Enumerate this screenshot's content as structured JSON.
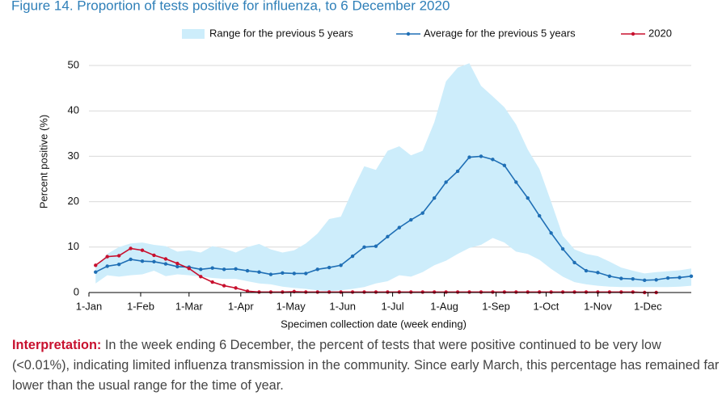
{
  "chart_data": {
    "type": "line",
    "title": "Figure 14. Proportion of tests positive for influenza, to 6 December 2020",
    "x_label": "Specimen collection date (week ending)",
    "y_label": "Percent positive (%)",
    "x": [
      "5-Jan",
      "12-Jan",
      "19-Jan",
      "26-Jan",
      "2-Feb",
      "9-Feb",
      "16-Feb",
      "23-Feb",
      "1-Mar",
      "8-Mar",
      "15-Mar",
      "22-Mar",
      "29-Mar",
      "5-Apr",
      "12-Apr",
      "19-Apr",
      "26-Apr",
      "3-May",
      "10-May",
      "17-May",
      "24-May",
      "31-May",
      "7-Jun",
      "14-Jun",
      "21-Jun",
      "28-Jun",
      "5-Jul",
      "12-Jul",
      "19-Jul",
      "26-Jul",
      "2-Aug",
      "9-Aug",
      "16-Aug",
      "23-Aug",
      "30-Aug",
      "6-Sep",
      "13-Sep",
      "20-Sep",
      "27-Sep",
      "4-Oct",
      "11-Oct",
      "18-Oct",
      "25-Oct",
      "1-Nov",
      "8-Nov",
      "15-Nov",
      "22-Nov",
      "29-Nov",
      "6-Dec",
      "13-Dec",
      "20-Dec",
      "27-Dec"
    ],
    "series": [
      {
        "name": "Range for the previous 5 years",
        "kind": "range",
        "color": "#cdedfb",
        "low": [
          2.0,
          3.8,
          3.5,
          3.8,
          4.0,
          4.8,
          3.6,
          4.0,
          3.8,
          3.5,
          3.2,
          3.0,
          3.0,
          2.5,
          2.0,
          1.8,
          1.3,
          1.0,
          0.8,
          0.5,
          0.3,
          0.5,
          0.8,
          1.2,
          2.0,
          2.5,
          3.8,
          3.5,
          4.5,
          6.0,
          7.0,
          8.5,
          9.8,
          10.5,
          12.0,
          11.0,
          9.0,
          8.5,
          7.2,
          5.2,
          3.5,
          2.3,
          1.8,
          1.5,
          1.3,
          1.2,
          1.2,
          1.2,
          1.2,
          1.2,
          1.3,
          1.5
        ],
        "high": [
          5.5,
          8.5,
          10.0,
          10.8,
          11.0,
          10.5,
          10.2,
          9.0,
          9.3,
          8.8,
          10.2,
          9.7,
          8.8,
          10.0,
          10.7,
          9.5,
          8.8,
          9.3,
          10.8,
          13.0,
          16.2,
          16.7,
          22.5,
          27.8,
          27.0,
          31.2,
          32.2,
          30.2,
          31.2,
          37.5,
          46.5,
          49.5,
          50.5,
          45.5,
          43.2,
          40.8,
          37.0,
          31.5,
          27.2,
          20.0,
          12.5,
          9.5,
          8.5,
          8.0,
          6.8,
          5.5,
          4.8,
          4.2,
          4.5,
          4.7,
          4.9,
          5.3
        ]
      },
      {
        "name": "Average for the previous 5 years",
        "color": "#1f6fb5",
        "values": [
          4.5,
          5.8,
          6.2,
          7.3,
          6.9,
          6.8,
          6.3,
          5.7,
          5.6,
          5.1,
          5.4,
          5.1,
          5.2,
          4.8,
          4.5,
          4.0,
          4.3,
          4.2,
          4.2,
          5.1,
          5.5,
          6.0,
          8.0,
          10.0,
          10.2,
          12.3,
          14.3,
          16.0,
          17.5,
          20.8,
          24.3,
          26.7,
          29.8,
          30.0,
          29.3,
          28.0,
          24.3,
          20.8,
          16.9,
          13.1,
          9.6,
          6.6,
          4.8,
          4.4,
          3.6,
          3.1,
          3.0,
          2.7,
          2.8,
          3.2,
          3.3,
          3.6
        ]
      },
      {
        "name": "2020",
        "color": "#c8102e",
        "values": [
          6.0,
          7.9,
          8.1,
          9.7,
          9.3,
          8.2,
          7.4,
          6.4,
          5.3,
          3.5,
          2.3,
          1.5,
          1.0,
          0.3,
          0.1,
          0.1,
          0.1,
          0.2,
          0.1,
          0.1,
          0.1,
          0.1,
          0.1,
          0.1,
          0.1,
          0.1,
          0.1,
          0.1,
          0.1,
          0.1,
          0.1,
          0.1,
          0.1,
          0.1,
          0.1,
          0.1,
          0.1,
          0.1,
          0.1,
          0.1,
          0.1,
          0.1,
          0.1,
          0.1,
          0.1,
          0.1,
          0.1,
          0.0,
          0.0,
          null,
          null,
          null
        ]
      }
    ],
    "xticks": [
      "1-Jan",
      "1-Feb",
      "1-Mar",
      "1-Apr",
      "1-May",
      "1-Jun",
      "1-Jul",
      "1-Aug",
      "1-Sep",
      "1-Oct",
      "1-Nov",
      "1-Dec"
    ],
    "xlim": [
      "1-Jan",
      "27-Dec"
    ],
    "ylim": [
      0,
      50
    ],
    "yticks": [
      0,
      10,
      20,
      30,
      40,
      50
    ],
    "grid": true
  },
  "interpretation": {
    "label": "Interpretation:",
    "text": "In the week ending 6 December, the percent of tests that were positive continued to be very low (<0.01%), indicating limited influenza transmission in the community. Since early March, this percentage has remained far lower than the usual range for the time of year."
  }
}
